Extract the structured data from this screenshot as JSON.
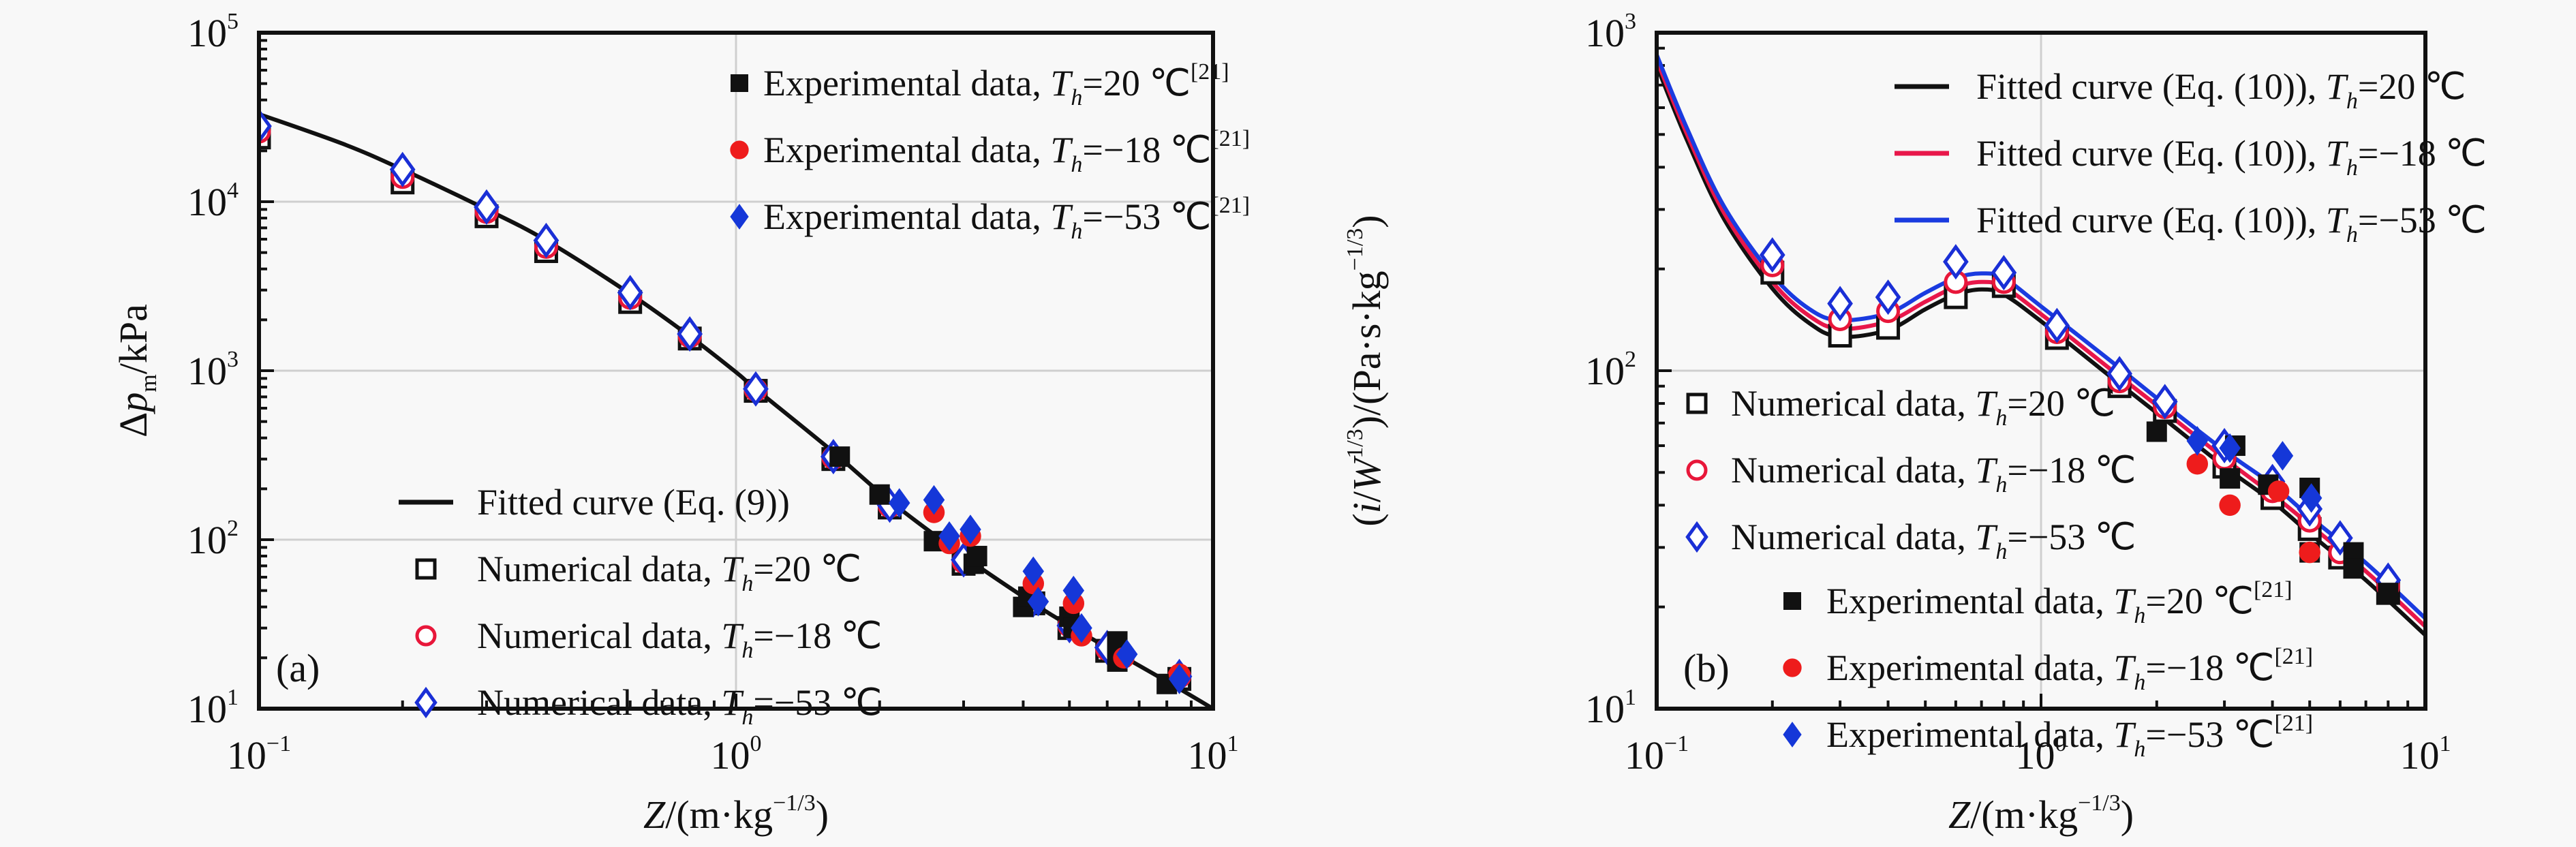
{
  "chart_data": [
    {
      "id": "a",
      "type": "scatter",
      "panel_label": "(a)",
      "xlabel": "Z/(m·kg−1/3)",
      "xlabel_parts": {
        "var": "Z",
        "unit_pre": "/(m·kg",
        "unit_sup": "−1/3",
        "unit_post": ")"
      },
      "ylabel": "Δpm/kPa",
      "ylabel_parts": {
        "pre": "Δ",
        "var": "p",
        "sub": "m",
        "post": "/kPa"
      },
      "xscale": "log",
      "yscale": "log",
      "xlim": [
        0.1,
        10
      ],
      "ylim": [
        10,
        100000
      ],
      "xticks": [
        {
          "base": "10",
          "exp": "−1",
          "value": 0.1
        },
        {
          "base": "10",
          "exp": "0",
          "value": 1
        },
        {
          "base": "10",
          "exp": "1",
          "value": 10
        }
      ],
      "yticks": [
        {
          "base": "10",
          "exp": "1",
          "value": 10
        },
        {
          "base": "10",
          "exp": "2",
          "value": 100
        },
        {
          "base": "10",
          "exp": "3",
          "value": 1000
        },
        {
          "base": "10",
          "exp": "4",
          "value": 10000
        },
        {
          "base": "10",
          "exp": "5",
          "value": 100000
        }
      ],
      "grid": true,
      "lines": [
        {
          "name": "Fitted curve (Eq. (9))",
          "color": "#111111",
          "x": [
            0.1,
            0.15,
            0.2,
            0.3,
            0.4,
            0.6,
            0.8,
            1.0,
            1.1,
            1.6,
            2.1,
            3.0,
            4.2,
            5.0,
            6.0,
            8.0,
            10.0
          ],
          "y": [
            33000,
            22000,
            15500,
            9000,
            5900,
            2850,
            1600,
            980,
            780,
            330,
            170,
            80,
            42,
            31,
            23,
            14.5,
            10
          ]
        }
      ],
      "series": [
        {
          "name": "Numerical data, Th=20 ℃",
          "marker": "square-open",
          "color": "#111111",
          "x": [
            0.1,
            0.2,
            0.3,
            0.4,
            0.6,
            0.8,
            1.1,
            1.6,
            2.1,
            3.0,
            4.2,
            5.0,
            6.0,
            8.5
          ],
          "y": [
            24000,
            13000,
            8200,
            5100,
            2550,
            1550,
            760,
            300,
            155,
            72,
            42,
            30,
            22,
            15
          ]
        },
        {
          "name": "Numerical data, Th=−18 ℃",
          "marker": "circle-open",
          "color": "#e8173a",
          "x": [
            0.1,
            0.2,
            0.3,
            0.4,
            0.6,
            0.8,
            1.1,
            1.6,
            2.1,
            3.0,
            4.2,
            5.0,
            6.0,
            8.5
          ],
          "y": [
            26000,
            14000,
            8700,
            5400,
            2700,
            1600,
            770,
            305,
            158,
            74,
            43,
            31,
            22.5,
            15.5
          ]
        },
        {
          "name": "Numerical data, Th=−53 ℃",
          "marker": "diamond-open",
          "color": "#1a2fd6",
          "x": [
            0.1,
            0.2,
            0.3,
            0.4,
            0.6,
            0.8,
            1.1,
            1.6,
            2.1,
            3.0,
            4.2,
            5.0,
            6.0,
            8.5
          ],
          "y": [
            28000,
            15500,
            9300,
            5900,
            2900,
            1650,
            780,
            310,
            160,
            76,
            44,
            31,
            23,
            15.5
          ]
        },
        {
          "name": "Experimental data, Th=20 ℃[21]",
          "marker": "square-filled",
          "color": "#111111",
          "x": [
            1.65,
            2.0,
            2.6,
            3.15,
            3.2,
            4.0,
            4.1,
            5.0,
            5.1,
            6.3,
            6.3,
            8.0
          ],
          "y": [
            310,
            185,
            98,
            72,
            80,
            40,
            46,
            35,
            30,
            25,
            19,
            14
          ]
        },
        {
          "name": "Experimental data, Th=−18 ℃[21]",
          "marker": "circle-filled",
          "color": "#ee1c1c",
          "x": [
            2.6,
            2.8,
            3.1,
            4.2,
            5.1,
            5.3,
            6.5,
            8.5
          ],
          "y": [
            145,
            95,
            105,
            55,
            42,
            27,
            20,
            16
          ]
        },
        {
          "name": "Experimental data, Th=−53 ℃[21]",
          "marker": "diamond-filled",
          "color": "#1537d8",
          "x": [
            2.2,
            2.6,
            2.8,
            3.1,
            4.2,
            4.3,
            5.1,
            5.3,
            6.6,
            8.5
          ],
          "y": [
            165,
            172,
            105,
            115,
            65,
            43,
            50,
            30,
            21,
            15
          ]
        }
      ],
      "legends": [
        {
          "placement": "top-right",
          "entries": [
            {
              "marker": "square-filled",
              "color": "#111111",
              "pre": "Experimental data, ",
              "var": "T",
              "sub": "h",
              "val": "=20 ℃",
              "ref": "[21]"
            },
            {
              "marker": "circle-filled",
              "color": "#ee1c1c",
              "pre": "Experimental data, ",
              "var": "T",
              "sub": "h",
              "val": "=−18 ℃",
              "ref": "[21]"
            },
            {
              "marker": "diamond-filled",
              "color": "#1537d8",
              "pre": "Experimental data, ",
              "var": "T",
              "sub": "h",
              "val": "=−53 ℃",
              "ref": "[21]"
            }
          ]
        },
        {
          "placement": "bottom-left",
          "entries": [
            {
              "marker": "line",
              "color": "#111111",
              "pre": "Fitted curve (Eq. (9))",
              "var": "",
              "sub": "",
              "val": "",
              "ref": ""
            },
            {
              "marker": "square-open",
              "color": "#111111",
              "pre": "Numerical data, ",
              "var": "T",
              "sub": "h",
              "val": "=20 ℃",
              "ref": ""
            },
            {
              "marker": "circle-open",
              "color": "#e8173a",
              "pre": "Numerical data, ",
              "var": "T",
              "sub": "h",
              "val": "=−18 ℃",
              "ref": ""
            },
            {
              "marker": "diamond-open",
              "color": "#1a2fd6",
              "pre": "Numerical data, ",
              "var": "T",
              "sub": "h",
              "val": "=−53 ℃",
              "ref": ""
            }
          ]
        }
      ]
    },
    {
      "id": "b",
      "type": "scatter",
      "panel_label": "(b)",
      "xlabel": "Z/(m·kg−1/3)",
      "xlabel_parts": {
        "var": "Z",
        "unit_pre": "/(m·kg",
        "unit_sup": "−1/3",
        "unit_post": ")"
      },
      "ylabel": "(i/W1/3)/(Pa·s·kg−1/3)",
      "ylabel_parts": {
        "pre": "(",
        "var": "i",
        "mid": "/",
        "var2": "W",
        "sup1": "1/3",
        "post": ")/(Pa·s·kg",
        "sup2": "−1/3",
        "end": ")"
      },
      "xscale": "log",
      "yscale": "log",
      "xlim": [
        0.1,
        10
      ],
      "ylim": [
        10,
        1000
      ],
      "xticks": [
        {
          "base": "10",
          "exp": "−1",
          "value": 0.1
        },
        {
          "base": "10",
          "exp": "0",
          "value": 1
        },
        {
          "base": "10",
          "exp": "1",
          "value": 10
        }
      ],
      "yticks": [
        {
          "base": "10",
          "exp": "1",
          "value": 10
        },
        {
          "base": "10",
          "exp": "2",
          "value": 100
        },
        {
          "base": "10",
          "exp": "3",
          "value": 1000
        }
      ],
      "grid": true,
      "lines": [
        {
          "name": "Fitted curve (Eq. (10)), Th=20 ℃",
          "color": "#111111",
          "x": [
            0.1,
            0.12,
            0.15,
            0.2,
            0.25,
            0.3,
            0.4,
            0.5,
            0.6,
            0.7,
            0.8,
            1.0,
            1.5,
            2.0,
            3.0,
            4.0,
            5.0,
            7.0,
            10.0
          ],
          "y": [
            800,
            480,
            280,
            175,
            138,
            126,
            132,
            152,
            168,
            174,
            168,
            140,
            97,
            75,
            52,
            41,
            33,
            24,
            16.5
          ]
        },
        {
          "name": "Fitted curve (Eq. (10)), Th=−18 ℃",
          "color": "#e8174a",
          "x": [
            0.1,
            0.12,
            0.15,
            0.2,
            0.25,
            0.3,
            0.4,
            0.5,
            0.6,
            0.7,
            0.8,
            1.0,
            1.5,
            2.0,
            3.0,
            4.0,
            5.0,
            7.0,
            10.0
          ],
          "y": [
            830,
            500,
            292,
            183,
            145,
            133,
            140,
            160,
            177,
            183,
            177,
            147,
            102,
            79,
            55,
            43,
            35,
            25.5,
            17.5
          ]
        },
        {
          "name": "Fitted curve (Eq. (10)), Th=−53 ℃",
          "color": "#1a3be0",
          "x": [
            0.1,
            0.12,
            0.15,
            0.2,
            0.25,
            0.3,
            0.4,
            0.5,
            0.6,
            0.7,
            0.8,
            1.0,
            1.5,
            2.0,
            3.0,
            4.0,
            5.0,
            7.0,
            10.0
          ],
          "y": [
            860,
            520,
            305,
            192,
            152,
            141,
            148,
            170,
            188,
            194,
            188,
            155,
            108,
            83,
            58,
            46,
            37,
            27,
            18.5
          ]
        }
      ],
      "series": [
        {
          "name": "Numerical data, Th=20 ℃",
          "marker": "square-open",
          "color": "#111111",
          "x": [
            0.2,
            0.3,
            0.4,
            0.6,
            0.8,
            1.1,
            1.6,
            2.1,
            3.0,
            4.0,
            5.0,
            6.0,
            8.0
          ],
          "y": [
            195,
            127,
            134,
            165,
            178,
            125,
            90,
            76,
            52,
            42,
            34,
            28,
            22
          ]
        },
        {
          "name": "Numerical data, Th=−18 ℃",
          "marker": "circle-open",
          "color": "#e8173a",
          "x": [
            0.2,
            0.3,
            0.4,
            0.6,
            0.8,
            1.1,
            1.6,
            2.1,
            3.0,
            4.0,
            5.0,
            6.0,
            8.0
          ],
          "y": [
            205,
            142,
            150,
            183,
            183,
            130,
            93,
            78,
            55,
            44,
            36,
            29,
            23
          ]
        },
        {
          "name": "Numerical data, Th=−53 ℃",
          "marker": "diamond-open",
          "color": "#1a2fd6",
          "x": [
            0.2,
            0.3,
            0.4,
            0.6,
            0.8,
            1.1,
            1.6,
            2.1,
            3.0,
            4.0,
            5.0,
            6.0,
            8.0
          ],
          "y": [
            220,
            158,
            165,
            210,
            195,
            136,
            98,
            81,
            60,
            47,
            39,
            32,
            24
          ]
        },
        {
          "name": "Experimental data, Th=20 ℃[21]",
          "marker": "square-filled",
          "color": "#111111",
          "x": [
            2.0,
            3.1,
            3.2,
            3.9,
            5.0,
            5.0,
            6.5,
            6.5,
            8.0
          ],
          "y": [
            66,
            48,
            60,
            46,
            45,
            29,
            29,
            26,
            22
          ]
        },
        {
          "name": "Experimental data, Th=−18 ℃[21]",
          "marker": "circle-filled",
          "color": "#ee1c1c",
          "x": [
            2.55,
            3.1,
            4.15,
            5.0
          ],
          "y": [
            53,
            40,
            44,
            29
          ]
        },
        {
          "name": "Experimental data, Th=−53 ℃[21]",
          "marker": "diamond-filled",
          "color": "#1537d8",
          "x": [
            2.55,
            3.1,
            4.25,
            5.05
          ],
          "y": [
            62,
            59,
            56,
            42
          ]
        }
      ],
      "legends": [
        {
          "placement": "top-right",
          "entries": [
            {
              "marker": "line",
              "color": "#111111",
              "pre": "Fitted curve (Eq. (10)), ",
              "var": "T",
              "sub": "h",
              "val": "=20 ℃",
              "ref": ""
            },
            {
              "marker": "line",
              "color": "#e8174a",
              "pre": "Fitted curve (Eq. (10)), ",
              "var": "T",
              "sub": "h",
              "val": "=−18 ℃",
              "ref": ""
            },
            {
              "marker": "line",
              "color": "#1a3be0",
              "pre": "Fitted curve (Eq. (10)), ",
              "var": "T",
              "sub": "h",
              "val": "=−53 ℃",
              "ref": ""
            }
          ]
        },
        {
          "placement": "middle-left",
          "entries": [
            {
              "marker": "square-open",
              "color": "#111111",
              "pre": "Numerical data, ",
              "var": "T",
              "sub": "h",
              "val": "=20 ℃",
              "ref": ""
            },
            {
              "marker": "circle-open",
              "color": "#e8173a",
              "pre": "Numerical data, ",
              "var": "T",
              "sub": "h",
              "val": "=−18 ℃",
              "ref": ""
            },
            {
              "marker": "diamond-open",
              "color": "#1a2fd6",
              "pre": "Numerical data, ",
              "var": "T",
              "sub": "h",
              "val": "=−53 ℃",
              "ref": ""
            }
          ]
        },
        {
          "placement": "bottom-left",
          "entries": [
            {
              "marker": "square-filled",
              "color": "#111111",
              "pre": "Experimental data, ",
              "var": "T",
              "sub": "h",
              "val": "=20 ℃",
              "ref": "[21]"
            },
            {
              "marker": "circle-filled",
              "color": "#ee1c1c",
              "pre": "Experimental data, ",
              "var": "T",
              "sub": "h",
              "val": "=−18 ℃",
              "ref": "[21]"
            },
            {
              "marker": "diamond-filled",
              "color": "#1537d8",
              "pre": "Experimental data, ",
              "var": "T",
              "sub": "h",
              "val": "=−53 ℃",
              "ref": "[21]"
            }
          ]
        }
      ]
    }
  ]
}
